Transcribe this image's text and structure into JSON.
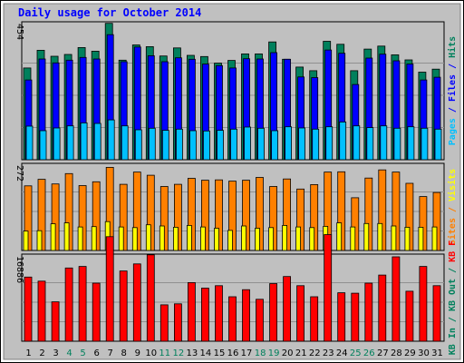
{
  "title": "Daily usage for October 2014",
  "colors": {
    "hits": "#00805C",
    "files": "#0000FF",
    "pages": "#00C0FF",
    "sites": "#FF8000",
    "visits": "#FFFF00",
    "kb_in": "#FF0000",
    "weekend_label": "#00805C",
    "title": "#0000FF",
    "panel_bg": "#C0C0C0"
  },
  "chart_data": [
    {
      "type": "bar",
      "panel": "top",
      "ylim_label": "454",
      "ymax": 454,
      "side_legend": [
        {
          "text": "Hits",
          "color": "#00805C"
        },
        {
          "text": " / ",
          "color": "#0000FF"
        },
        {
          "text": "Files",
          "color": "#0000FF"
        },
        {
          "text": " / ",
          "color": "#0000FF"
        },
        {
          "text": "Pages",
          "color": "#00C0FF"
        }
      ],
      "categories": [
        "1",
        "2",
        "3",
        "4",
        "5",
        "6",
        "7",
        "8",
        "9",
        "10",
        "11",
        "12",
        "13",
        "14",
        "15",
        "16",
        "17",
        "18",
        "19",
        "20",
        "21",
        "22",
        "23",
        "24",
        "25",
        "26",
        "27",
        "28",
        "29",
        "30",
        "31"
      ],
      "series": [
        {
          "name": "Hits",
          "values": [
            306,
            365,
            345,
            351,
            374,
            362,
            455,
            332,
            383,
            377,
            346,
            373,
            348,
            344,
            322,
            331,
            353,
            353,
            393,
            335,
            309,
            297,
            395,
            385,
            297,
            369,
            379,
            350,
            333,
            292,
            302
          ]
        },
        {
          "name": "Files",
          "values": [
            266,
            336,
            323,
            332,
            341,
            336,
            417,
            327,
            376,
            347,
            327,
            340,
            335,
            319,
            314,
            306,
            337,
            336,
            357,
            335,
            276,
            274,
            366,
            355,
            251,
            339,
            352,
            330,
            319,
            266,
            275
          ]
        },
        {
          "name": "Pages",
          "values": [
            112,
            97,
            106,
            113,
            123,
            121,
            133,
            113,
            100,
            105,
            98,
            102,
            97,
            96,
            98,
            102,
            109,
            105,
            97,
            110,
            106,
            102,
            110,
            126,
            113,
            107,
            113,
            105,
            110,
            105,
            102
          ]
        }
      ]
    },
    {
      "type": "bar",
      "panel": "middle",
      "ylim_label": "272",
      "ymax": 272,
      "side_legend": [
        {
          "text": "Visits",
          "color": "#FFFF00"
        },
        {
          "text": " / ",
          "color": "#FF8000"
        },
        {
          "text": "Sites",
          "color": "#FF8000"
        }
      ],
      "categories": [
        "1",
        "2",
        "3",
        "4",
        "5",
        "6",
        "7",
        "8",
        "9",
        "10",
        "11",
        "12",
        "13",
        "14",
        "15",
        "16",
        "17",
        "18",
        "19",
        "20",
        "21",
        "22",
        "23",
        "24",
        "25",
        "26",
        "27",
        "28",
        "29",
        "30",
        "31"
      ],
      "series": [
        {
          "name": "Sites",
          "values": [
            206,
            227,
            212,
            245,
            207,
            219,
            265,
            211,
            250,
            240,
            204,
            211,
            230,
            224,
            225,
            221,
            224,
            233,
            204,
            228,
            196,
            210,
            250,
            251,
            168,
            231,
            257,
            250,
            214,
            172,
            185
          ]
        },
        {
          "name": "Visits",
          "values": [
            62,
            63,
            85,
            88,
            75,
            76,
            92,
            75,
            73,
            82,
            78,
            74,
            80,
            75,
            71,
            64,
            78,
            71,
            73,
            80,
            75,
            73,
            77,
            88,
            75,
            86,
            86,
            78,
            74,
            74,
            75
          ]
        }
      ]
    },
    {
      "type": "bar",
      "panel": "bottom",
      "ylim_label": "16886",
      "ymax": 16886,
      "side_legend": [
        {
          "text": "KB F",
          "color": "#FF0000"
        },
        {
          "text": " / ",
          "color": "#00805C"
        },
        {
          "text": "KB Out",
          "color": "#00805C"
        },
        {
          "text": " / ",
          "color": "#00805C"
        },
        {
          "text": "KB In",
          "color": "#00805C"
        }
      ],
      "categories": [
        "1",
        "2",
        "3",
        "4",
        "5",
        "6",
        "7",
        "8",
        "9",
        "10",
        "11",
        "12",
        "13",
        "14",
        "15",
        "16",
        "17",
        "18",
        "19",
        "20",
        "21",
        "22",
        "23",
        "24",
        "25",
        "26",
        "27",
        "28",
        "29",
        "30",
        "31"
      ],
      "series": [
        {
          "name": "KB F",
          "values": [
            12700,
            11900,
            7800,
            14500,
            14800,
            11500,
            20700,
            13900,
            15300,
            17100,
            7200,
            7400,
            11600,
            10500,
            11000,
            8800,
            10200,
            8300,
            11400,
            12800,
            11000,
            8800,
            21100,
            9600,
            9500,
            11500,
            13100,
            16700,
            9900,
            14800,
            11000
          ]
        }
      ]
    }
  ],
  "x_labels": [
    {
      "text": "1",
      "weekend": false
    },
    {
      "text": "2",
      "weekend": false
    },
    {
      "text": "3",
      "weekend": false
    },
    {
      "text": "4",
      "weekend": true
    },
    {
      "text": "5",
      "weekend": true
    },
    {
      "text": "6",
      "weekend": false
    },
    {
      "text": "7",
      "weekend": false
    },
    {
      "text": "8",
      "weekend": false
    },
    {
      "text": "9",
      "weekend": false
    },
    {
      "text": "10",
      "weekend": false
    },
    {
      "text": "11",
      "weekend": true
    },
    {
      "text": "12",
      "weekend": true
    },
    {
      "text": "13",
      "weekend": false
    },
    {
      "text": "14",
      "weekend": false
    },
    {
      "text": "15",
      "weekend": false
    },
    {
      "text": "16",
      "weekend": false
    },
    {
      "text": "17",
      "weekend": false
    },
    {
      "text": "18",
      "weekend": true
    },
    {
      "text": "19",
      "weekend": true
    },
    {
      "text": "20",
      "weekend": false
    },
    {
      "text": "21",
      "weekend": false
    },
    {
      "text": "22",
      "weekend": false
    },
    {
      "text": "23",
      "weekend": false
    },
    {
      "text": "24",
      "weekend": false
    },
    {
      "text": "25",
      "weekend": true
    },
    {
      "text": "26",
      "weekend": true
    },
    {
      "text": "27",
      "weekend": false
    },
    {
      "text": "28",
      "weekend": false
    },
    {
      "text": "29",
      "weekend": false
    },
    {
      "text": "30",
      "weekend": false
    },
    {
      "text": "31",
      "weekend": false
    }
  ]
}
